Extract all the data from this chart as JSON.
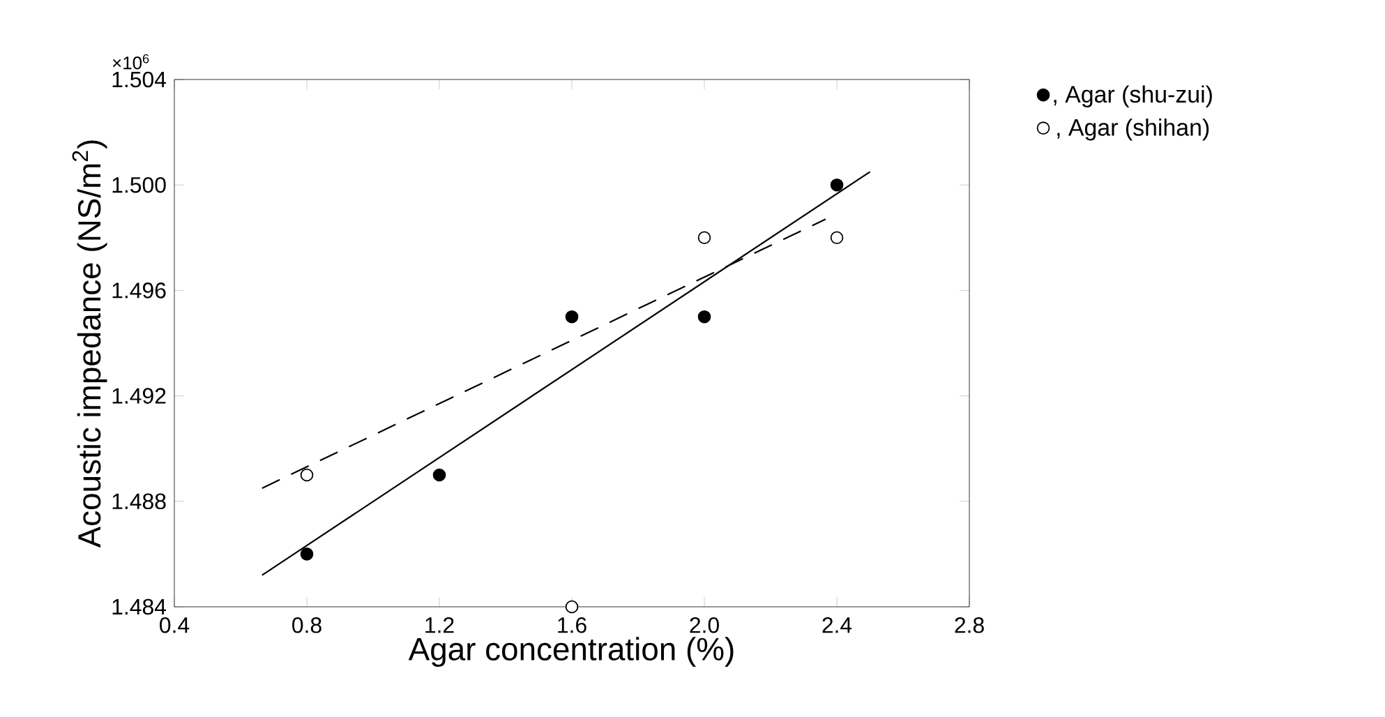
{
  "chart_data": {
    "type": "scatter",
    "xlabel": "Agar concentration (%)",
    "ylabel": "Acoustic impedance (NS/m$^{2}$)",
    "annotations": [
      "×10$^{6}$"
    ],
    "xlim": [
      0.4,
      2.8
    ],
    "ylim": [
      1.484,
      1.504
    ],
    "xticks": [
      {
        "value": 0.4,
        "label": "0.4"
      },
      {
        "value": 0.8,
        "label": "0.8"
      },
      {
        "value": 1.2,
        "label": "1.2"
      },
      {
        "value": 1.6,
        "label": "1.6"
      },
      {
        "value": 2.0,
        "label": "2.0"
      },
      {
        "value": 2.4,
        "label": "2.4"
      },
      {
        "value": 2.8,
        "label": "2.8"
      }
    ],
    "yticks": [
      {
        "value": 1.484,
        "label": "1.484"
      },
      {
        "value": 1.488,
        "label": "1.488"
      },
      {
        "value": 1.492,
        "label": "1.492"
      },
      {
        "value": 1.496,
        "label": "1.496"
      },
      {
        "value": 1.5,
        "label": "1.500"
      },
      {
        "value": 1.504,
        "label": "1.504"
      }
    ],
    "legend": "top right",
    "grid": false,
    "series": [
      {
        "name": ", Agar (shu-zui)",
        "marker": "circle",
        "color": "#000000",
        "x": [
          0.8,
          1.2,
          1.6,
          2.0,
          2.4
        ],
        "values": [
          1.486,
          1.489,
          1.495,
          1.495,
          1.5
        ]
      },
      {
        "name": ", Agar (shihan)",
        "marker": "circle",
        "color": "#ffffff",
        "x": [
          0.8,
          1.6,
          2.0,
          2.4
        ],
        "values": [
          1.489,
          1.484,
          1.498,
          1.498
        ]
      },
      {
        "type": "line",
        "line_style": "solid",
        "marker": "none",
        "color": "#000000",
        "x": [
          0.665,
          2.5
        ],
        "values": [
          1.4852,
          1.5005
        ]
      },
      {
        "type": "line",
        "line_style": "dashed",
        "marker": "none",
        "color": "#000000",
        "x": [
          0.665,
          2.366
        ],
        "values": [
          1.4885,
          1.4987
        ]
      }
    ]
  }
}
